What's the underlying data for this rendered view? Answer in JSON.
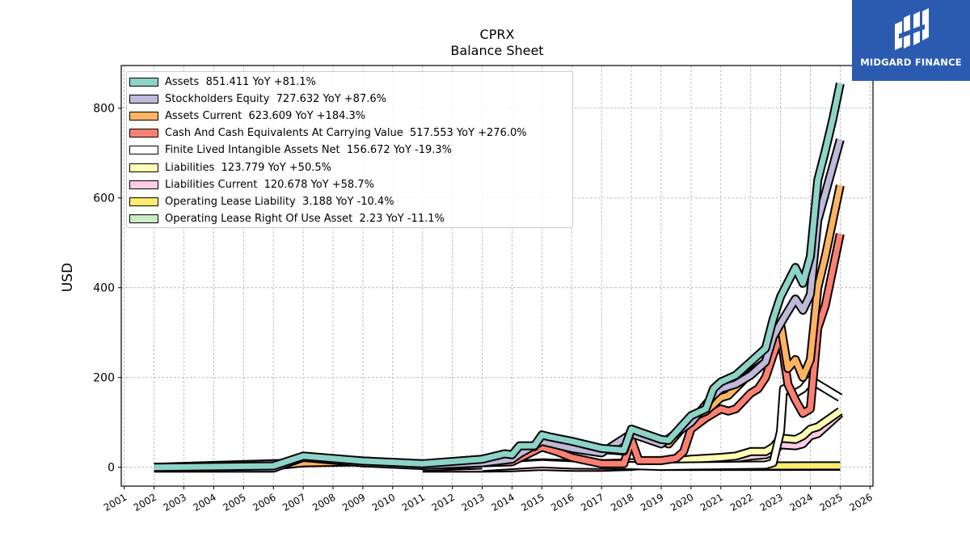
{
  "title": "CPRX",
  "subtitle": "Balance  Sheet",
  "logo": {
    "text": "MIDGARD FINANCE",
    "icon": "midgard-logo-icon",
    "background": "#2a5bb0"
  },
  "chart_data": {
    "type": "line",
    "title": "CPRX",
    "subtitle": "Balance  Sheet",
    "xlabel": "",
    "ylabel": "USD",
    "xlim": [
      2000.9,
      2026.1
    ],
    "ylim": [
      -42,
      895
    ],
    "x_ticks": [
      "2001",
      "2002",
      "2003",
      "2004",
      "2005",
      "2006",
      "2007",
      "2008",
      "2009",
      "2010",
      "2011",
      "2012",
      "2013",
      "2014",
      "2015",
      "2016",
      "2017",
      "2018",
      "2019",
      "2020",
      "2021",
      "2022",
      "2023",
      "2024",
      "2025",
      "2026"
    ],
    "y_ticks": [
      0,
      200,
      400,
      600,
      800
    ],
    "grid": true,
    "legend_position": "top-left",
    "series": [
      {
        "name": "Assets",
        "label": "Assets  851.411 YoY +81.1%",
        "color": "#8dd3c7",
        "points": [
          [
            2002,
            0
          ],
          [
            2006,
            3
          ],
          [
            2007,
            25
          ],
          [
            2009,
            14
          ],
          [
            2011,
            8
          ],
          [
            2013,
            18
          ],
          [
            2013.75,
            30
          ],
          [
            2014,
            28
          ],
          [
            2014.25,
            48
          ],
          [
            2014.75,
            48
          ],
          [
            2015,
            72
          ],
          [
            2015.25,
            68
          ],
          [
            2016,
            58
          ],
          [
            2017,
            42
          ],
          [
            2017.75,
            38
          ],
          [
            2018,
            85
          ],
          [
            2019,
            62
          ],
          [
            2019.25,
            60
          ],
          [
            2020,
            115
          ],
          [
            2020.5,
            130
          ],
          [
            2020.75,
            175
          ],
          [
            2021,
            190
          ],
          [
            2021.5,
            205
          ],
          [
            2022,
            235
          ],
          [
            2022.5,
            265
          ],
          [
            2022.75,
            330
          ],
          [
            2023,
            380
          ],
          [
            2023.5,
            445
          ],
          [
            2023.75,
            410
          ],
          [
            2024,
            470
          ],
          [
            2024.25,
            640
          ],
          [
            2024.5,
            705
          ],
          [
            2024.75,
            775
          ],
          [
            2025,
            855
          ]
        ]
      },
      {
        "name": "Stockholders Equity",
        "label": "Stockholders Equity  727.632 YoY +87.6%",
        "color": "#bebada",
        "points": [
          [
            2002,
            -2
          ],
          [
            2006,
            -2
          ],
          [
            2007,
            22
          ],
          [
            2009,
            10
          ],
          [
            2011,
            4
          ],
          [
            2013,
            10
          ],
          [
            2014,
            18
          ],
          [
            2014.25,
            30
          ],
          [
            2015,
            58
          ],
          [
            2016,
            42
          ],
          [
            2017,
            32
          ],
          [
            2018,
            75
          ],
          [
            2019,
            52
          ],
          [
            2020,
            100
          ],
          [
            2020.75,
            160
          ],
          [
            2021,
            175
          ],
          [
            2021.5,
            185
          ],
          [
            2022,
            205
          ],
          [
            2022.5,
            235
          ],
          [
            2022.75,
            290
          ],
          [
            2023,
            320
          ],
          [
            2023.5,
            375
          ],
          [
            2023.75,
            350
          ],
          [
            2024,
            385
          ],
          [
            2024.25,
            550
          ],
          [
            2024.5,
            610
          ],
          [
            2025,
            730
          ]
        ]
      },
      {
        "name": "Assets Current",
        "label": "Assets Current  623.609 YoY +184.3%",
        "color": "#fdb462",
        "points": [
          [
            2002,
            0
          ],
          [
            2006,
            3
          ],
          [
            2007,
            10
          ],
          [
            2009,
            12
          ],
          [
            2011,
            7
          ],
          [
            2013,
            18
          ],
          [
            2013.75,
            28
          ],
          [
            2014,
            26
          ],
          [
            2014.25,
            46
          ],
          [
            2014.75,
            46
          ],
          [
            2015,
            70
          ],
          [
            2015.25,
            66
          ],
          [
            2016,
            55
          ],
          [
            2017,
            40
          ],
          [
            2017.75,
            36
          ],
          [
            2018,
            82
          ],
          [
            2019,
            58
          ],
          [
            2019.25,
            52
          ],
          [
            2020,
            110
          ],
          [
            2020.5,
            125
          ],
          [
            2020.75,
            140
          ],
          [
            2021,
            155
          ],
          [
            2021.25,
            160
          ],
          [
            2022,
            210
          ],
          [
            2022.5,
            235
          ],
          [
            2022.75,
            300
          ],
          [
            2023,
            320
          ],
          [
            2023.25,
            220
          ],
          [
            2023.5,
            240
          ],
          [
            2023.75,
            200
          ],
          [
            2024,
            240
          ],
          [
            2024.25,
            400
          ],
          [
            2024.5,
            470
          ],
          [
            2025,
            628
          ]
        ]
      },
      {
        "name": "Cash And Cash Equivalents At Carrying Value",
        "label": "Cash And Cash Equivalents At Carrying Value  517.553 YoY +276.0%",
        "color": "#fb8072",
        "points": [
          [
            2002,
            0
          ],
          [
            2006,
            8
          ],
          [
            2009,
            14
          ],
          [
            2011,
            6
          ],
          [
            2012,
            5
          ],
          [
            2013,
            10
          ],
          [
            2014,
            12
          ],
          [
            2015,
            45
          ],
          [
            2015.5,
            35
          ],
          [
            2016,
            22
          ],
          [
            2017,
            8
          ],
          [
            2017.75,
            8
          ],
          [
            2018,
            62
          ],
          [
            2018.25,
            15
          ],
          [
            2019,
            15
          ],
          [
            2019.5,
            20
          ],
          [
            2019.75,
            35
          ],
          [
            2020,
            85
          ],
          [
            2020.5,
            110
          ],
          [
            2021,
            130
          ],
          [
            2021.25,
            125
          ],
          [
            2021.5,
            130
          ],
          [
            2022,
            165
          ],
          [
            2022.25,
            175
          ],
          [
            2022.5,
            200
          ],
          [
            2022.75,
            250
          ],
          [
            2023,
            295
          ],
          [
            2023.25,
            185
          ],
          [
            2023.5,
            150
          ],
          [
            2023.75,
            120
          ],
          [
            2024,
            130
          ],
          [
            2024.25,
            310
          ],
          [
            2024.5,
            360
          ],
          [
            2025,
            520
          ]
        ]
      },
      {
        "name": "Finite Lived Intangible Assets Net",
        "label": "Finite Lived Intangible Assets Net  156.672 YoY -19.3%",
        "color": "#ffffff",
        "points": [
          [
            2013,
            0
          ],
          [
            2015,
            8
          ],
          [
            2016,
            5
          ],
          [
            2018,
            4
          ],
          [
            2019,
            2
          ],
          [
            2020,
            3
          ],
          [
            2022.5,
            5
          ],
          [
            2022.75,
            10
          ],
          [
            2023,
            80
          ],
          [
            2023.1,
            175
          ],
          [
            2023.5,
            165
          ],
          [
            2023.75,
            175
          ],
          [
            2024,
            195
          ],
          [
            2025,
            155
          ]
        ]
      },
      {
        "name": "Liabilities",
        "label": "Liabilities  123.779 YoY +50.5%",
        "color": "#ffffb3",
        "points": [
          [
            2011,
            0
          ],
          [
            2013,
            5
          ],
          [
            2014,
            6
          ],
          [
            2015,
            10
          ],
          [
            2016,
            8
          ],
          [
            2017,
            8
          ],
          [
            2018,
            10
          ],
          [
            2019,
            10
          ],
          [
            2020,
            18
          ],
          [
            2020.5,
            20
          ],
          [
            2021,
            22
          ],
          [
            2021.5,
            25
          ],
          [
            2022,
            35
          ],
          [
            2022.5,
            35
          ],
          [
            2022.75,
            45
          ],
          [
            2023,
            65
          ],
          [
            2023.5,
            62
          ],
          [
            2023.75,
            70
          ],
          [
            2024,
            85
          ],
          [
            2024.25,
            90
          ],
          [
            2025,
            125
          ]
        ]
      },
      {
        "name": "Liabilities Current",
        "label": "Liabilities Current  120.678 YoY +58.7%",
        "color": "#fccde5",
        "points": [
          [
            2011,
            -2
          ],
          [
            2013,
            -2
          ],
          [
            2014,
            -1
          ],
          [
            2015,
            2
          ],
          [
            2016,
            0
          ],
          [
            2017,
            0
          ],
          [
            2018,
            2
          ],
          [
            2019,
            8
          ],
          [
            2020,
            12
          ],
          [
            2020.5,
            15
          ],
          [
            2021,
            18
          ],
          [
            2021.5,
            20
          ],
          [
            2022,
            25
          ],
          [
            2022.5,
            28
          ],
          [
            2022.75,
            35
          ],
          [
            2023,
            50
          ],
          [
            2023.5,
            48
          ],
          [
            2023.75,
            52
          ],
          [
            2024,
            70
          ],
          [
            2024.25,
            75
          ],
          [
            2025,
            120
          ]
        ]
      },
      {
        "name": "Operating Lease Liability",
        "label": "Operating Lease Liability  3.188 YoY -10.4%",
        "color": "#ffed6f",
        "points": [
          [
            2019,
            3
          ],
          [
            2021,
            3
          ],
          [
            2023,
            3
          ],
          [
            2025,
            3.2
          ]
        ]
      },
      {
        "name": "Operating Lease Right Of Use Asset",
        "label": "Operating Lease Right Of Use Asset  2.23 YoY -11.1%",
        "color": "#ccebc5",
        "points": [
          [
            2019,
            2
          ],
          [
            2021,
            2
          ],
          [
            2023,
            2
          ],
          [
            2025,
            2.2
          ]
        ]
      }
    ]
  }
}
